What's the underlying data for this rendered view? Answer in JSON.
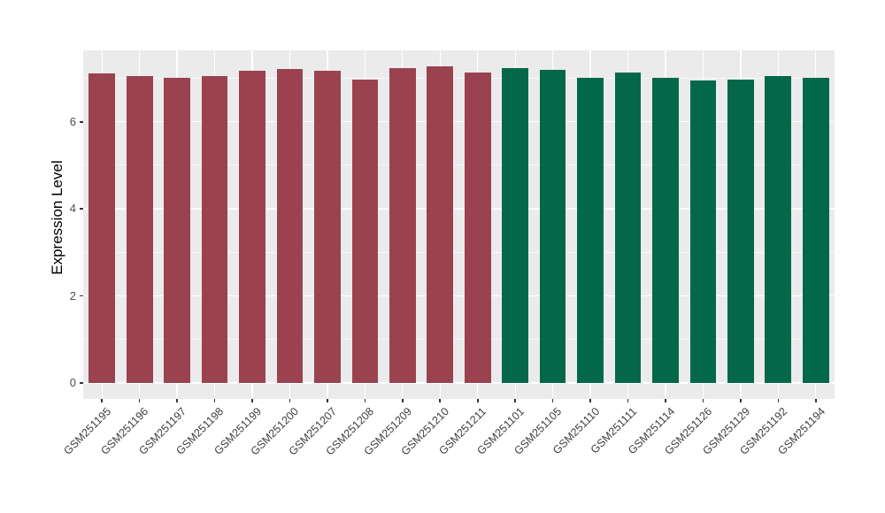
{
  "chart_data": {
    "type": "bar",
    "title": "",
    "xlabel": "",
    "ylabel": "Expression Level",
    "ylim": [
      0,
      7.64
    ],
    "yticks": [
      0,
      2,
      4,
      6
    ],
    "yticks_minor": [
      1,
      3,
      5,
      7
    ],
    "grid": "on (ggplot-style gray panel, white major gridlines at y ticks and at each category center, faint white minor gridlines)",
    "legend_position": "none",
    "categories": [
      "GSM251195",
      "GSM251196",
      "GSM251197",
      "GSM251198",
      "GSM251199",
      "GSM251200",
      "GSM251207",
      "GSM251208",
      "GSM251209",
      "GSM251210",
      "GSM251211",
      "GSM251101",
      "GSM251105",
      "GSM251110",
      "GSM251111",
      "GSM251114",
      "GSM251126",
      "GSM251129",
      "GSM251192",
      "GSM251194"
    ],
    "values": [
      7.11,
      7.06,
      7.0,
      7.06,
      7.18,
      7.22,
      7.18,
      6.96,
      7.24,
      7.28,
      7.13,
      7.24,
      7.2,
      7.02,
      7.14,
      7.0,
      6.94,
      6.97,
      7.05,
      7.0
    ],
    "bar_colors": [
      "#9B4251",
      "#9B4251",
      "#9B4251",
      "#9B4251",
      "#9B4251",
      "#9B4251",
      "#9B4251",
      "#9B4251",
      "#9B4251",
      "#9B4251",
      "#9B4251",
      "#026849",
      "#026849",
      "#026849",
      "#026849",
      "#026849",
      "#026849",
      "#026849",
      "#026849",
      "#026849"
    ],
    "groups": [
      {
        "name": "group-red",
        "color": "#9B4251",
        "categories": [
          "GSM251195",
          "GSM251196",
          "GSM251197",
          "GSM251198",
          "GSM251199",
          "GSM251200",
          "GSM251207",
          "GSM251208",
          "GSM251209",
          "GSM251210",
          "GSM251211"
        ]
      },
      {
        "name": "group-green",
        "color": "#026849",
        "categories": [
          "GSM251101",
          "GSM251105",
          "GSM251110",
          "GSM251111",
          "GSM251114",
          "GSM251126",
          "GSM251129",
          "GSM251192",
          "GSM251194"
        ]
      }
    ]
  },
  "style": {
    "page_background": "#FFFFFF",
    "panel_background": "#EBEBEB",
    "grid_major_color": "#FFFFFF",
    "tick_color": "#333333",
    "tick_label_color": "#4D4D4D",
    "axis_title_color": "#000000"
  }
}
